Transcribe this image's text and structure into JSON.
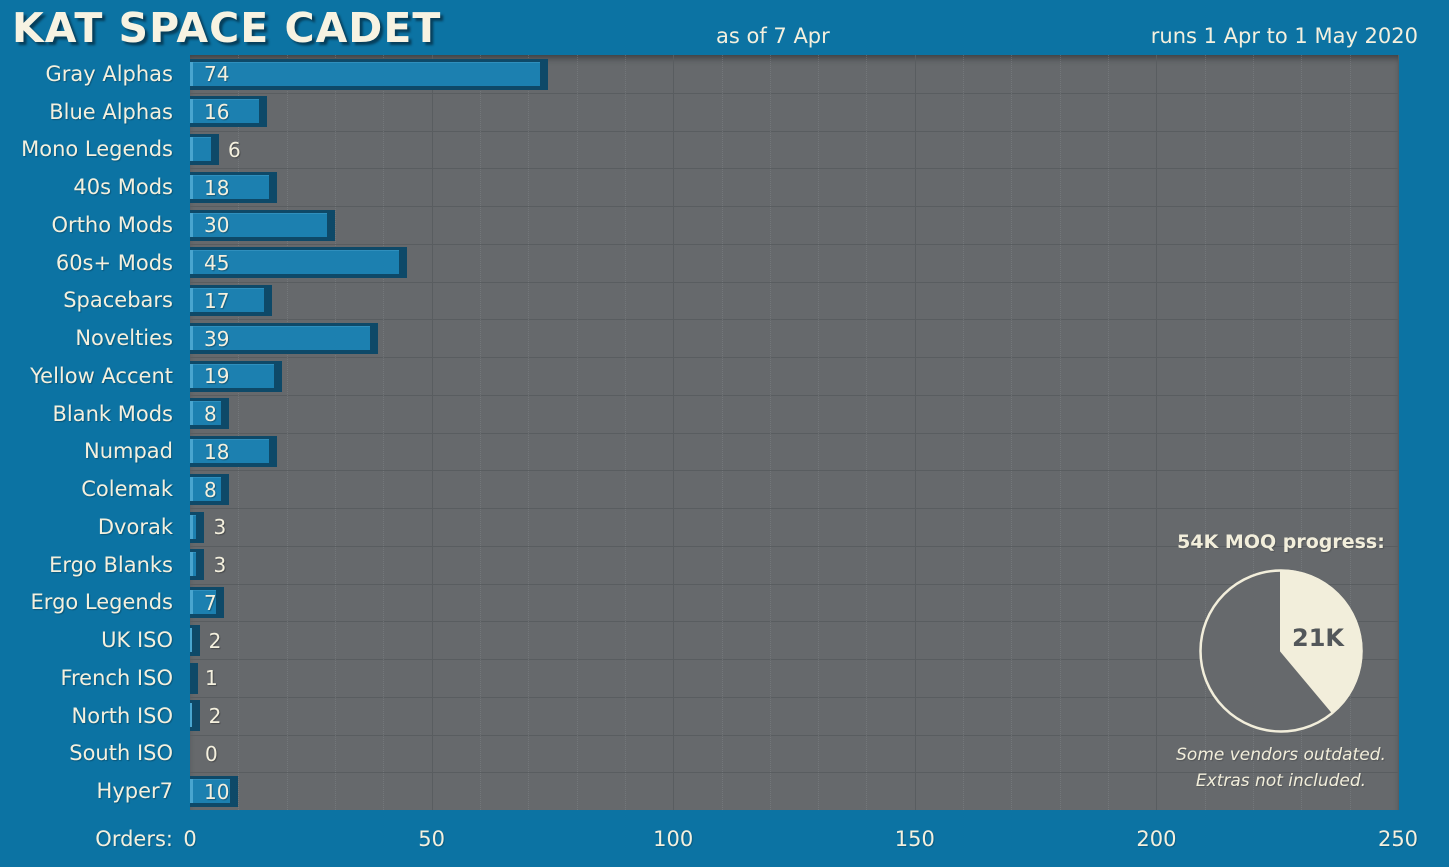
{
  "header": {
    "title": "KAT SPACE CADET",
    "as_of": "as of 7 Apr",
    "runs": "runs 1 Apr to 1 May 2020"
  },
  "chart_data": {
    "type": "bar",
    "orientation": "horizontal",
    "title": "KAT SPACE CADET",
    "xlabel": "Orders:",
    "categories": [
      "Gray Alphas",
      "Blue Alphas",
      "Mono Legends",
      "40s Mods",
      "Ortho Mods",
      "60s+ Mods",
      "Spacebars",
      "Novelties",
      "Yellow Accent",
      "Blank Mods",
      "Numpad",
      "Colemak",
      "Dvorak",
      "Ergo Blanks",
      "Ergo Legends",
      "UK ISO",
      "French ISO",
      "North ISO",
      "South ISO",
      "Hyper7"
    ],
    "values": [
      74,
      16,
      6,
      18,
      30,
      45,
      17,
      39,
      19,
      8,
      18,
      8,
      3,
      3,
      7,
      2,
      1,
      2,
      0,
      10
    ],
    "xlim": [
      0,
      250
    ],
    "x_ticks": [
      0,
      50,
      100,
      150,
      200,
      250
    ],
    "minor_grid_step": 10,
    "major_grid_step": 50,
    "grid": "on",
    "legend": "none"
  },
  "pie": {
    "title": "54K MOQ progress:",
    "type": "pie",
    "progress_label": "21K",
    "progress_value": 21,
    "total_value": 54,
    "footnote_line1": "Some vendors outdated.",
    "footnote_line2": "Extras not included."
  },
  "colors": {
    "background": "#0c73a3",
    "plot_background": "#66696c",
    "bar_fill": "#1c80b0",
    "bar_border": "#0e4968",
    "bar_highlight": "#49a5cf",
    "text_cream": "#f4f0de",
    "grid_line": "#595d60",
    "pie_slice": "#f2eedb",
    "pie_label_text": "#53575a"
  }
}
